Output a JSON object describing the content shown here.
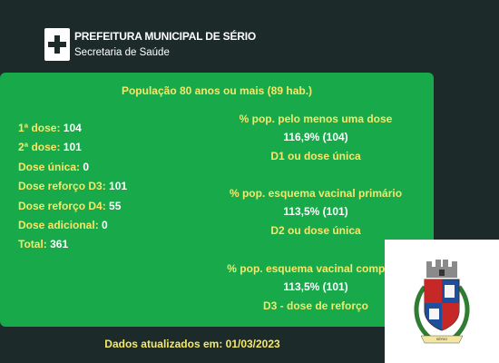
{
  "header": {
    "org_name": "PREFEITURA MUNICIPAL DE SÉRIO",
    "org_subtitle": "Secretaria de Saúde",
    "logo_icon": "medical-cross-icon"
  },
  "card": {
    "title": "População 80 anos ou mais (89 hab.)",
    "doses": [
      {
        "label": "1ª dose:",
        "value": "104"
      },
      {
        "label": "2ª dose:",
        "value": "101"
      },
      {
        "label": "Dose única:",
        "value": "0"
      },
      {
        "label": "Dose reforço D3:",
        "value": "101"
      },
      {
        "label": "Dose reforço D4:",
        "value": "55"
      },
      {
        "label": "Dose adicional:",
        "value": "0"
      },
      {
        "label": "Total:",
        "value": "361"
      }
    ],
    "stats": [
      {
        "label": "% pop. pelo menos uma dose",
        "value": "116,9% (104)",
        "sub": "D1 ou dose única"
      },
      {
        "label": "% pop. esquema vacinal primário",
        "value": "113,5% (101)",
        "sub": "D2 ou dose única"
      },
      {
        "label": "% pop. esquema vacinal completo",
        "value": "113,5% (101)",
        "sub": "D3 - dose de reforço"
      }
    ]
  },
  "footer": {
    "updated_text": "Dados atualizados em: 01/03/2023"
  },
  "crest": {
    "icon": "municipal-coat-of-arms",
    "banner_text": "SÉRIO"
  },
  "colors": {
    "background": "#1c2b2a",
    "card": "#17a94a",
    "accent_yellow": "#f5e86a",
    "text_white": "#ffffff"
  }
}
